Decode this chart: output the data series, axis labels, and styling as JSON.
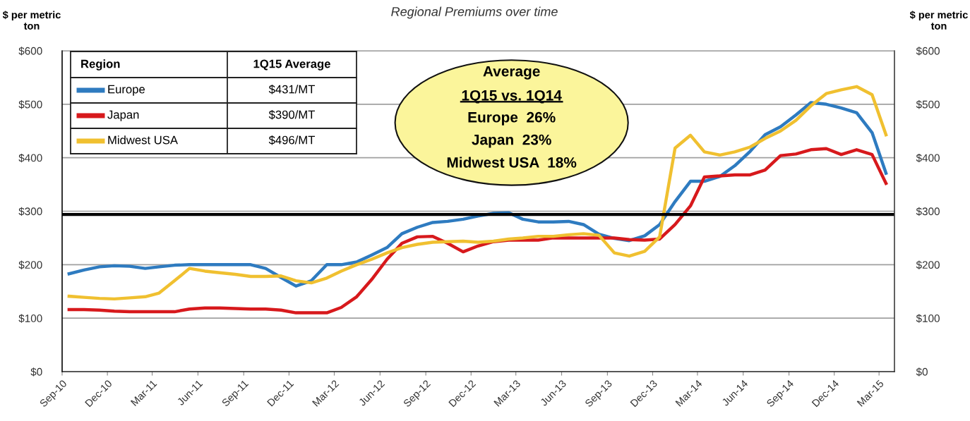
{
  "chart_data": {
    "type": "line",
    "title": "Regional Premiums over time",
    "ylabel": "$ per metric ton",
    "y2label": "$ per metric ton",
    "legend_title": "Region",
    "legend": "top left",
    "grid": "y",
    "marker": "none",
    "line_style": "solid",
    "x": [
      "2010-09-15",
      "2010-10-15",
      "2010-11-15",
      "2010-12-15",
      "2011-01-15",
      "2011-02-15",
      "2011-03-15",
      "2011-04-15",
      "2011-05-15",
      "2011-06-15",
      "2011-07-15",
      "2011-08-15",
      "2011-09-15",
      "2011-10-15",
      "2011-11-15",
      "2011-12-15",
      "2012-01-15",
      "2012-02-15",
      "2012-03-15",
      "2012-04-15",
      "2012-05-15",
      "2012-06-15",
      "2012-07-15",
      "2012-08-15",
      "2012-09-15",
      "2012-10-15",
      "2012-11-15",
      "2012-12-15",
      "2013-01-15",
      "2013-02-15",
      "2013-03-15",
      "2013-04-15",
      "2013-05-15",
      "2013-06-15",
      "2013-07-15",
      "2013-08-15",
      "2013-09-15",
      "2013-10-15",
      "2013-11-15",
      "2013-12-15",
      "2014-01-15",
      "2014-02-15",
      "2014-03-15",
      "2014-04-15",
      "2014-05-15",
      "2014-06-15",
      "2014-07-15",
      "2014-08-15",
      "2014-09-15",
      "2014-10-15",
      "2014-11-15",
      "2014-12-15",
      "2015-01-15",
      "2015-02-15",
      "2015-03-15"
    ],
    "series": [
      {
        "name": "Europe",
        "color": "#2e7bc0",
        "values": [
          183,
          190,
          196,
          198,
          197,
          193,
          196,
          199,
          200,
          200,
          200,
          200,
          200,
          193,
          176,
          160,
          170,
          200,
          200,
          205,
          218,
          232,
          258,
          270,
          279,
          281,
          285,
          291,
          296,
          297,
          285,
          280,
          280,
          281,
          275,
          257,
          249,
          245,
          254,
          275,
          318,
          356,
          356,
          365,
          385,
          412,
          443,
          458,
          480,
          503,
          500,
          493,
          484,
          447,
          371
        ]
      },
      {
        "name": "Japan",
        "color": "#d7191c",
        "values": [
          116,
          116,
          115,
          113,
          112,
          112,
          112,
          112,
          117,
          119,
          119,
          118,
          117,
          117,
          115,
          110,
          110,
          110,
          120,
          140,
          172,
          210,
          240,
          252,
          253,
          240,
          224,
          235,
          243,
          246,
          246,
          246,
          250,
          250,
          250,
          250,
          250,
          247,
          246,
          248,
          275,
          310,
          364,
          366,
          368,
          368,
          377,
          404,
          407,
          415,
          417,
          406,
          415,
          406,
          352
        ]
      },
      {
        "name": "Midwest USA",
        "color": "#f0c030",
        "values": [
          141,
          139,
          137,
          136,
          138,
          140,
          147,
          170,
          193,
          188,
          185,
          182,
          178,
          178,
          179,
          170,
          166,
          175,
          188,
          200,
          210,
          222,
          232,
          238,
          242,
          243,
          244,
          242,
          244,
          248,
          250,
          253,
          253,
          256,
          258,
          255,
          222,
          216,
          225,
          252,
          418,
          442,
          411,
          405,
          411,
          420,
          436,
          450,
          470,
          497,
          520,
          527,
          533,
          518,
          443
        ]
      }
    ],
    "xlim": [
      "2010-09-01",
      "2015-04-01"
    ],
    "xticks": [
      {
        "value": "2010-09-01",
        "label": "Sep-10"
      },
      {
        "value": "2010-12-01",
        "label": "Dec-10"
      },
      {
        "value": "2011-03-01",
        "label": "Mar-11"
      },
      {
        "value": "2011-06-01",
        "label": "Jun-11"
      },
      {
        "value": "2011-09-01",
        "label": "Sep-11"
      },
      {
        "value": "2011-12-01",
        "label": "Dec-11"
      },
      {
        "value": "2012-03-01",
        "label": "Mar-12"
      },
      {
        "value": "2012-06-01",
        "label": "Jun-12"
      },
      {
        "value": "2012-09-01",
        "label": "Sep-12"
      },
      {
        "value": "2012-12-01",
        "label": "Dec-12"
      },
      {
        "value": "2013-03-01",
        "label": "Mar-13"
      },
      {
        "value": "2013-06-01",
        "label": "Jun-13"
      },
      {
        "value": "2013-09-01",
        "label": "Sep-13"
      },
      {
        "value": "2013-12-01",
        "label": "Dec-13"
      },
      {
        "value": "2014-03-01",
        "label": "Mar-14"
      },
      {
        "value": "2014-06-01",
        "label": "Jun-14"
      },
      {
        "value": "2014-09-01",
        "label": "Sep-14"
      },
      {
        "value": "2014-12-01",
        "label": "Dec-14"
      },
      {
        "value": "2015-03-01",
        "label": "Mar-15"
      }
    ],
    "ylim": [
      0,
      600
    ],
    "yticks": [
      {
        "value": 0,
        "label": "$0"
      },
      {
        "value": 100,
        "label": "$100"
      },
      {
        "value": 200,
        "label": "$200"
      },
      {
        "value": 300,
        "label": "$300"
      },
      {
        "value": 400,
        "label": "$400"
      },
      {
        "value": 500,
        "label": "$500"
      },
      {
        "value": 600,
        "label": "$600"
      }
    ],
    "y2lim": [
      0,
      600
    ],
    "y2ticks": [
      {
        "value": 0,
        "label": "$0"
      },
      {
        "value": 100,
        "label": "$100"
      },
      {
        "value": 200,
        "label": "$200"
      },
      {
        "value": 300,
        "label": "$300"
      },
      {
        "value": 400,
        "label": "$400"
      },
      {
        "value": 500,
        "label": "$500"
      },
      {
        "value": 600,
        "label": "$600"
      }
    ],
    "ref_lines": [
      {
        "axis": "y",
        "value": 294,
        "color": "#000000"
      }
    ],
    "annotations": [
      "1Q15 Average",
      "$431/MT",
      "$390/MT",
      "$496/MT",
      "Average",
      "1Q15 vs. 1Q14",
      "Europe  26%",
      "Japan  23%",
      "Midwest USA  18%"
    ]
  }
}
